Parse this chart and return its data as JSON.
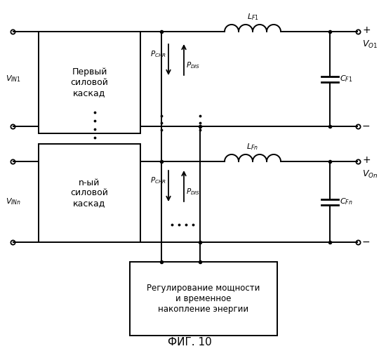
{
  "title": "ФИГ. 10",
  "background_color": "#ffffff",
  "line_color": "#000000",
  "box1_label": "Первый\nсиловой\nкаскад",
  "box2_label": "n-ый\nсиловой\nкаскад",
  "box3_label": "Регулирование мощности\nи временное\nнакопление энергии"
}
